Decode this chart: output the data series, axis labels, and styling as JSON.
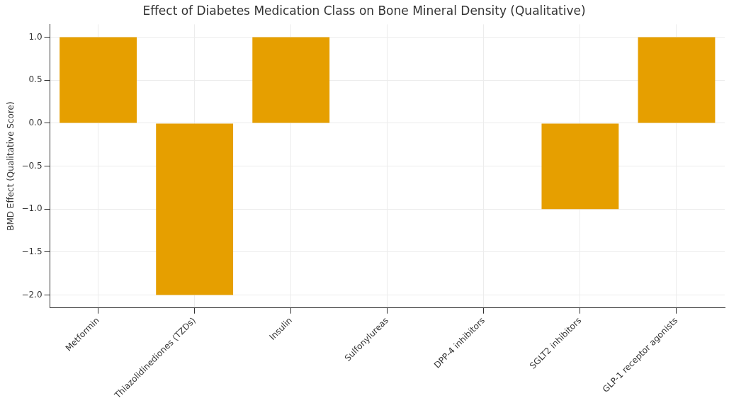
{
  "chart_data": {
    "type": "bar",
    "title": "Effect of Diabetes Medication Class on Bone Mineral Density (Qualitative)",
    "ylabel": "BMD Effect (Qualitative Score)",
    "categories": [
      "Metformin",
      "Thiazolidinediones (TZDs)",
      "Insulin",
      "Sulfonylureas",
      "DPP-4 inhibitors",
      "SGLT2 inhibitors",
      "GLP-1 receptor agonists"
    ],
    "values": [
      1,
      -2,
      1,
      0,
      0,
      -1,
      1
    ],
    "color": "#e69f00",
    "ylim": [
      -2.15,
      1.15
    ],
    "yticks": [
      {
        "value": -2,
        "label": "−2.0"
      },
      {
        "value": -1.5,
        "label": "−1.5"
      },
      {
        "value": -1,
        "label": "−1.0"
      },
      {
        "value": -0.5,
        "label": "−0.5"
      },
      {
        "value": 0,
        "label": "0.0"
      },
      {
        "value": 0.5,
        "label": "0.5"
      },
      {
        "value": 1,
        "label": "1.0"
      }
    ],
    "grid": true
  }
}
